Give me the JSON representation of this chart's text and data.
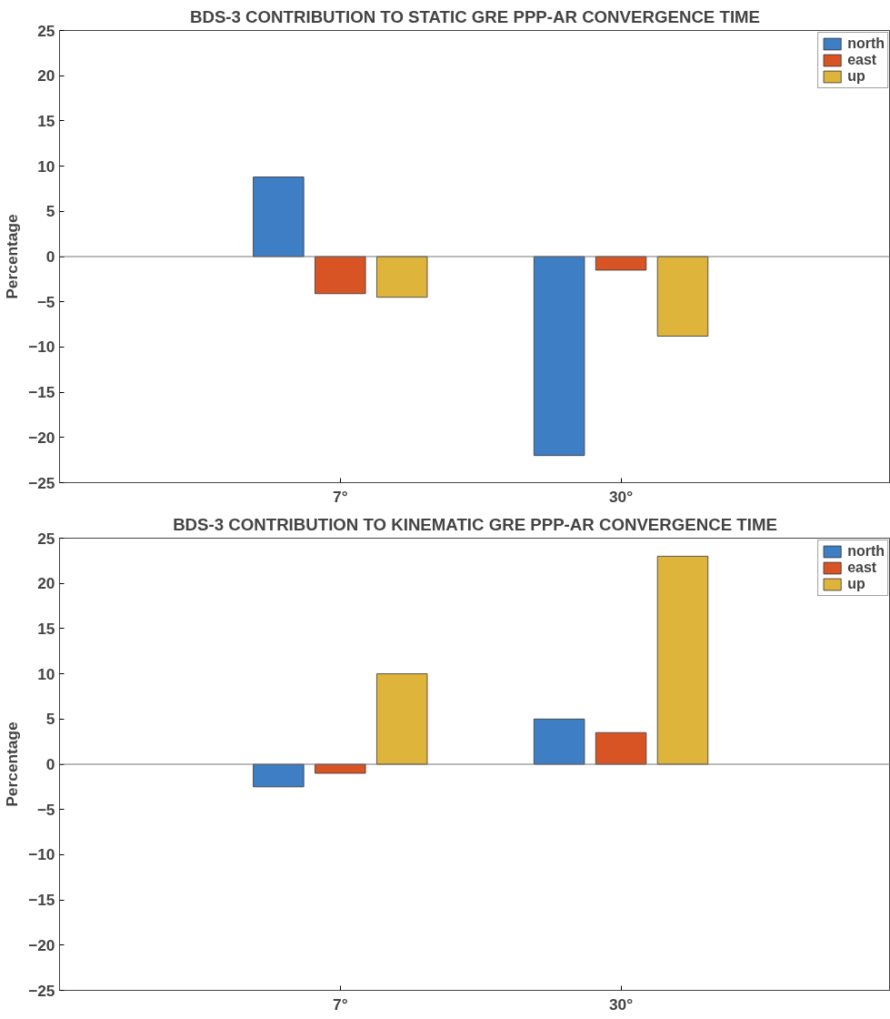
{
  "chart_data": [
    {
      "type": "bar",
      "title": "BDS-3 CONTRIBUTION TO STATIC GRE PPP-AR CONVERGENCE TIME",
      "ylabel": "Percentage",
      "categories": [
        "7°",
        "30°"
      ],
      "series": [
        {
          "name": "north",
          "color": "#3d7ec5",
          "values": [
            8.8,
            -22
          ]
        },
        {
          "name": "east",
          "color": "#d95425",
          "values": [
            -4.1,
            -1.5
          ]
        },
        {
          "name": "up",
          "color": "#dfb43a",
          "values": [
            -4.5,
            -8.8
          ]
        }
      ],
      "ylim": [
        -25,
        25
      ],
      "yticks": [
        -25,
        -20,
        -15,
        -10,
        -5,
        0,
        5,
        10,
        15,
        20,
        25
      ],
      "grid": false,
      "legend": "top right",
      "ref_lines": [
        {
          "axis": "y",
          "value": 0,
          "color": "#777777"
        }
      ]
    },
    {
      "type": "bar",
      "title": "BDS-3 CONTRIBUTION TO KINEMATIC GRE PPP-AR CONVERGENCE TIME",
      "ylabel": "Percentage",
      "categories": [
        "7°",
        "30°"
      ],
      "series": [
        {
          "name": "north",
          "color": "#3d7ec5",
          "values": [
            -2.5,
            5
          ]
        },
        {
          "name": "east",
          "color": "#d95425",
          "values": [
            -1,
            3.5
          ]
        },
        {
          "name": "up",
          "color": "#dfb43a",
          "values": [
            10,
            23
          ]
        }
      ],
      "ylim": [
        -25,
        25
      ],
      "yticks": [
        -25,
        -20,
        -15,
        -10,
        -5,
        0,
        5,
        10,
        15,
        20,
        25
      ],
      "grid": false,
      "legend": "top right",
      "ref_lines": [
        {
          "axis": "y",
          "value": 0,
          "color": "#777777"
        }
      ]
    }
  ]
}
